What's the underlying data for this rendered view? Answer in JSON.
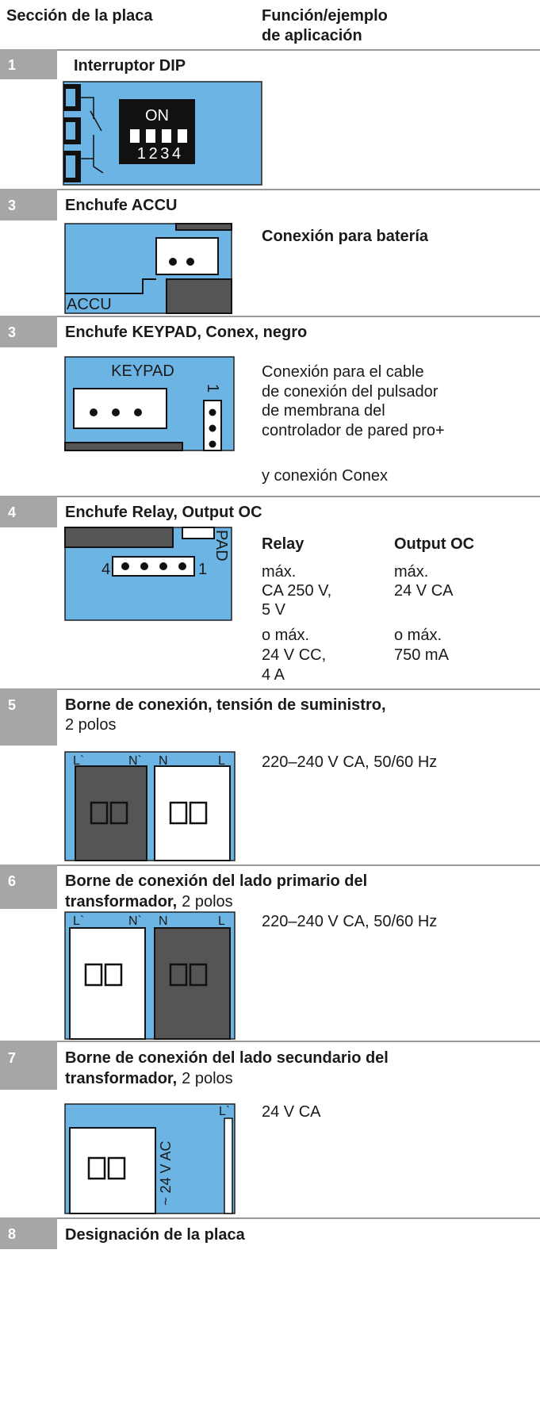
{
  "header": {
    "section": "Sección de la placa",
    "function": [
      "Función/ejemplo",
      "de aplicación"
    ]
  },
  "rows": [
    {
      "number": "1",
      "title": "Interruptor DIP",
      "image_labels": [
        "ON",
        "1 2 3 4"
      ]
    },
    {
      "number": "3",
      "title": "Enchufe ACCU",
      "image_labels": [
        "ACCU"
      ],
      "description": [
        "Conexión para batería"
      ]
    },
    {
      "number": "3",
      "title": "Enchufe KEYPAD, Conex, negro",
      "image_labels": [
        "KEYPAD",
        "1"
      ],
      "description": [
        "Conexión para el cable",
        "de conexión del pulsador",
        "de membrana del",
        "controlador de pared pro+",
        "y conexión Conex"
      ]
    },
    {
      "number": "4",
      "title": "Enchufe Relay, Output OC",
      "image_labels": [
        "PAD",
        "4",
        "1"
      ],
      "table": {
        "columns": [
          {
            "header": "Relay",
            "cells": [
              [
                "máx.",
                "CA 250 V,",
                "5 V"
              ],
              [
                "o máx.",
                "24 V CC,",
                "4 A"
              ]
            ]
          },
          {
            "header": "Output OC",
            "cells": [
              [
                "máx.",
                "24 V CA"
              ],
              [
                "o máx.",
                "750 mA"
              ]
            ]
          }
        ]
      }
    },
    {
      "number": "5",
      "title": [
        "Borne de conexión, tensión de suministro,"
      ],
      "title_tail": "2 polos",
      "image_labels": [
        "L`",
        "N`",
        "N",
        "L"
      ],
      "description": [
        "220–240 V CA, 50/60 Hz"
      ]
    },
    {
      "number": "6",
      "title": [
        "Borne de conexión del lado primario del",
        "transformador,"
      ],
      "title_tail": "2 polos",
      "image_labels": [
        "L`",
        "N`",
        "N",
        "L"
      ],
      "description": [
        "220–240 V CA, 50/60 Hz"
      ]
    },
    {
      "number": "7",
      "title": [
        "Borne de conexión del lado secundario del",
        "transformador,"
      ],
      "title_tail": "2 polos",
      "image_labels": [
        "L`",
        "~ 24 V AC"
      ],
      "description": [
        "24 V CA"
      ]
    },
    {
      "number": "8",
      "title": "Designación de la placa"
    }
  ]
}
